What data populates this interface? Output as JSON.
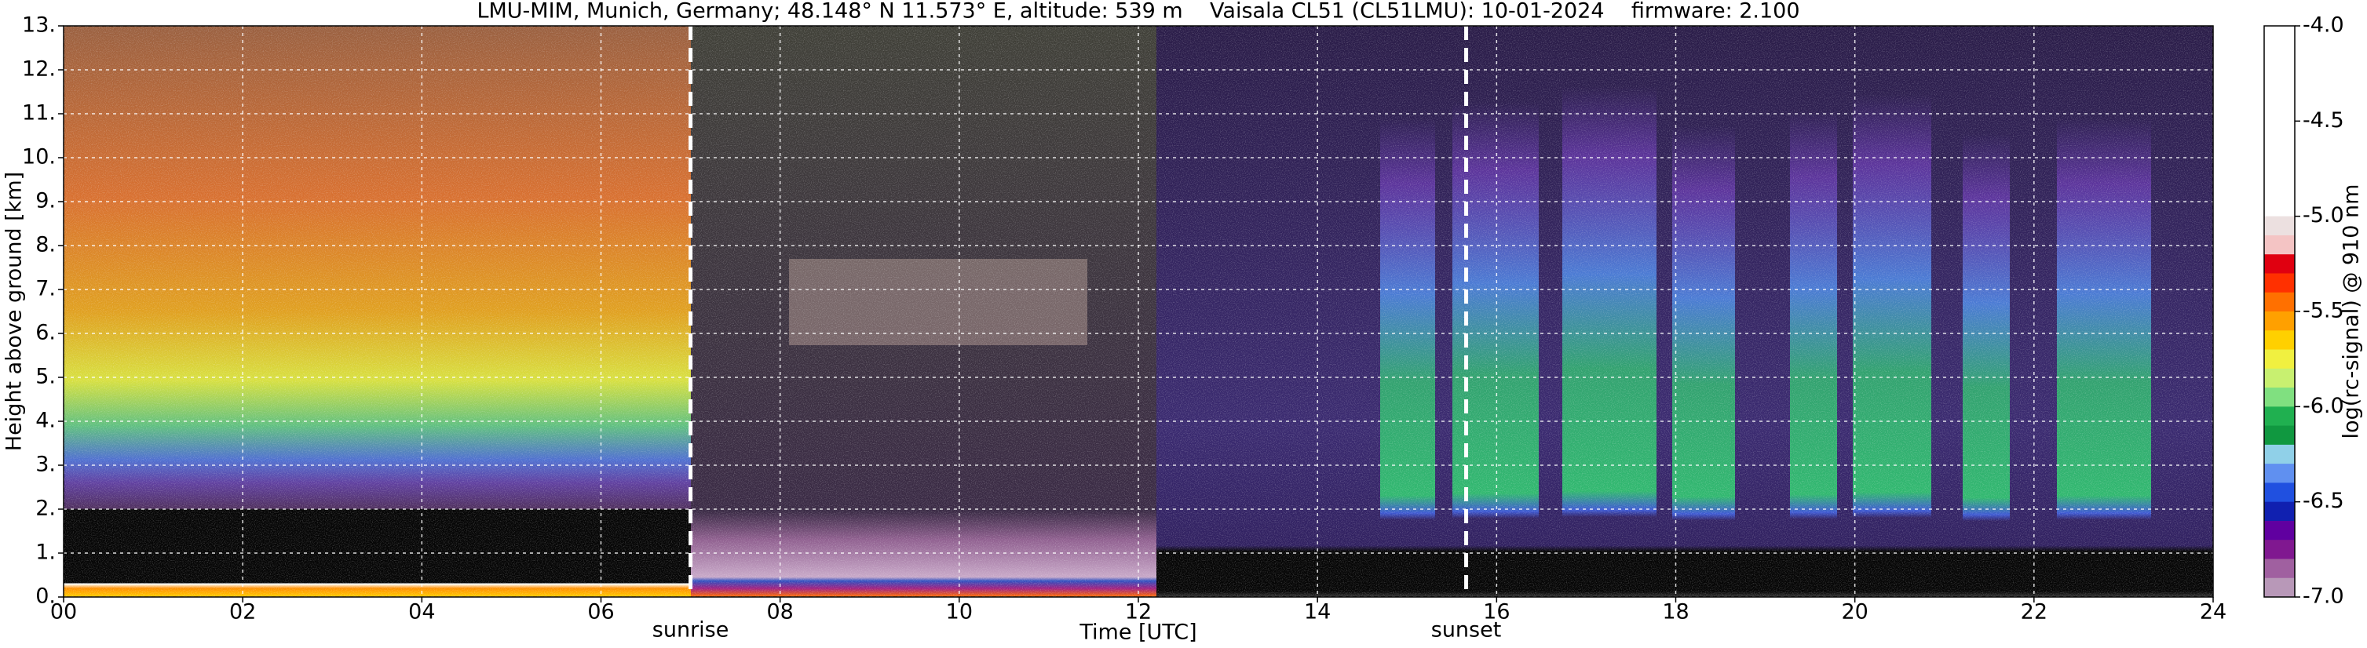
{
  "chart_data": {
    "type": "heatmap",
    "title": "LMU-MIM, Munich, Germany; 48.148° N 11.573° E, altitude: 539 m    Vaisala CL51 (CL51LMU): 10-01-2024    firmware: 2.100",
    "x_label": "Time [UTC]",
    "y_label": "Height above ground [km]",
    "xlim": [
      0,
      24
    ],
    "xticks": [
      {
        "value": 0,
        "label": "00"
      },
      {
        "value": 2,
        "label": "02"
      },
      {
        "value": 4,
        "label": "04"
      },
      {
        "value": 6,
        "label": "06"
      },
      {
        "value": 8,
        "label": "08"
      },
      10,
      12,
      14,
      16,
      18,
      20,
      22,
      24
    ],
    "ylim": [
      0,
      13
    ],
    "yticks": [
      {
        "value": 0,
        "label": "0."
      },
      {
        "value": 1,
        "label": "1."
      },
      {
        "value": 2,
        "label": "2."
      },
      {
        "value": 3,
        "label": "3."
      },
      {
        "value": 4,
        "label": "4."
      },
      {
        "value": 5,
        "label": "5."
      },
      {
        "value": 6,
        "label": "6."
      },
      {
        "value": 7,
        "label": "7."
      },
      {
        "value": 8,
        "label": "8."
      },
      {
        "value": 9,
        "label": "9."
      },
      {
        "value": 10,
        "label": "10."
      },
      {
        "value": 11,
        "label": "11."
      },
      {
        "value": 12,
        "label": "12."
      },
      {
        "value": 13,
        "label": "13."
      }
    ],
    "grid": true,
    "annotations": [
      {
        "text": "sunrise",
        "x": 7.0
      },
      {
        "text": "sunset",
        "x": 15.66
      }
    ],
    "colorbar": {
      "label": "log(rc-signal) @ 910 nm",
      "clim": [
        -7,
        -4
      ],
      "ticks": [
        {
          "value": -4,
          "label": "-4.0"
        },
        {
          "value": -4.5,
          "label": "-4.5"
        },
        {
          "value": -5,
          "label": "-5.0"
        },
        {
          "value": -5.5,
          "label": "-5.5"
        },
        {
          "value": -6,
          "label": "-6.0"
        },
        {
          "value": -6.5,
          "label": "-6.5"
        },
        {
          "value": -7,
          "label": "-7.0"
        }
      ],
      "colors": [
        "#ffffff",
        "#ffffff",
        "#ffffff",
        "#ffffff",
        "#ffffff",
        "#ffffff",
        "#ffffff",
        "#ffffff",
        "#ffffff",
        "#ffffff",
        "#ece0e0",
        "#f4c4c4",
        "#e00010",
        "#ff3000",
        "#ff7000",
        "#ffa000",
        "#ffd000",
        "#f0f040",
        "#c8f070",
        "#80e080",
        "#20b050",
        "#109840",
        "#90d0e8",
        "#6090f0",
        "#2050e0",
        "#1020b0",
        "#6000a0",
        "#801890",
        "#a060a0",
        "#b898b8"
      ]
    }
  }
}
